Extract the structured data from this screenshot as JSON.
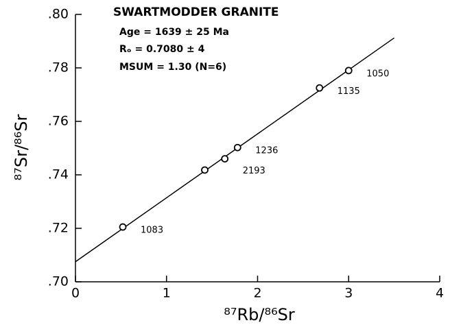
{
  "chart_data": {
    "type": "scatter",
    "title": "SWARTMODDER GRANITE",
    "annotations": [
      "Age = 1639 ± 25 Ma",
      "Rₒ = 0.7080 ± 4",
      "MSUM = 1.30 (N=6)"
    ],
    "x_label": "⁸⁷Rb/⁸⁶Sr",
    "y_label": "⁸⁷Sr/⁸⁶Sr",
    "x": [
      0.52,
      1.42,
      1.64,
      1.78,
      2.68,
      3.0
    ],
    "values": [
      0.7205,
      0.7418,
      0.746,
      0.7502,
      0.7725,
      0.779
    ],
    "point_labels": [
      "1083",
      null,
      "2193",
      "1236",
      "1135",
      "1050"
    ],
    "fit_line": {
      "x": [
        0,
        3.5
      ],
      "y": [
        0.7075,
        0.7912
      ]
    },
    "color": "#000000",
    "xlim": [
      0,
      4
    ],
    "ylim": [
      0.7,
      0.8
    ],
    "xticks": [
      0,
      1,
      2,
      3,
      4
    ],
    "yticks": [
      {
        "value": 0.7,
        "label": ".70"
      },
      {
        "value": 0.72,
        "label": ".72"
      },
      {
        "value": 0.74,
        "label": ".74"
      },
      {
        "value": 0.76,
        "label": ".76"
      },
      {
        "value": 0.78,
        "label": ".78"
      },
      {
        "value": 0.8,
        "label": ".80"
      }
    ]
  }
}
